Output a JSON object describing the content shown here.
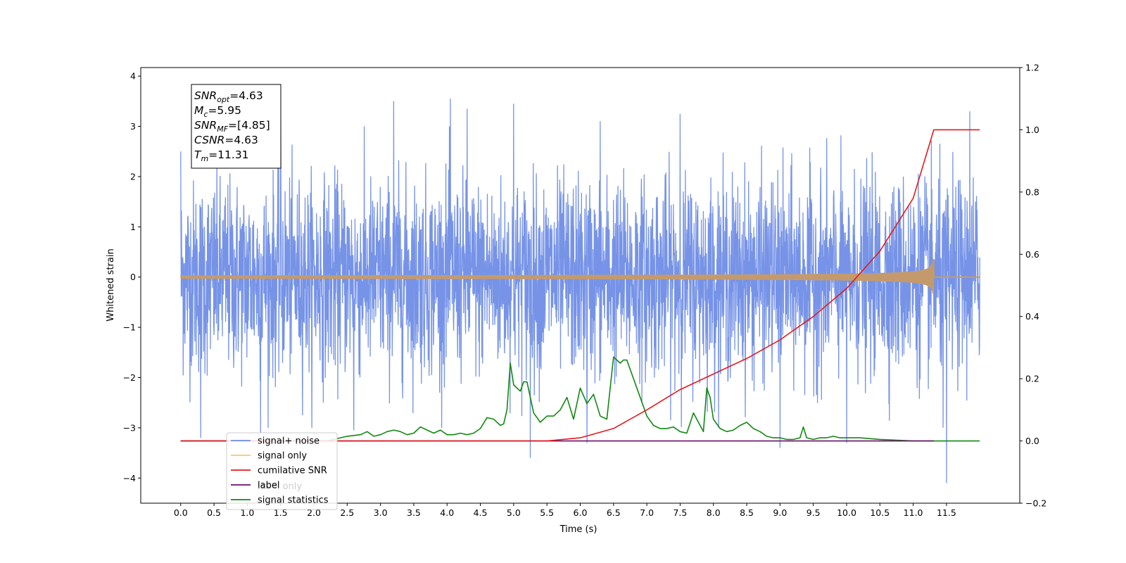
{
  "chart_data": {
    "type": "line",
    "xlabel": "Time (s)",
    "ylabel": "Whitened strain",
    "xlim": [
      -0.6,
      12.6
    ],
    "ylim": [
      -4.5,
      4.17
    ],
    "y2lim": [
      -0.2,
      1.2
    ],
    "x_ticks": [
      "0.0",
      "0.5",
      "1.0",
      "1.5",
      "2.0",
      "2.5",
      "3.0",
      "3.5",
      "4.0",
      "4.5",
      "5.0",
      "5.5",
      "6.0",
      "6.5",
      "7.0",
      "7.5",
      "8.0",
      "8.5",
      "9.0",
      "9.5",
      "10.0",
      "10.5",
      "11.0",
      "11.5"
    ],
    "y_ticks": [
      "4",
      "3",
      "2",
      "1",
      "0",
      "−1",
      "−2",
      "−3",
      "−4"
    ],
    "y2_ticks": [
      "1.2",
      "1.0",
      "0.8",
      "0.6",
      "0.4",
      "0.2",
      "0.0",
      "−0.2"
    ],
    "info_box": {
      "lines": [
        {
          "main": "SNR",
          "sub": "opt",
          "value": "=4.63"
        },
        {
          "main": "M",
          "sub": "c",
          "value": "=5.95"
        },
        {
          "main": "SNR",
          "sub": "MF",
          "value": "=[4.85]"
        },
        {
          "main": "CSNR",
          "sub": "",
          "value": "=4.63"
        },
        {
          "main": "T",
          "sub": "m",
          "value": "=11.31"
        }
      ]
    },
    "legend": {
      "position": "lower-left",
      "entries": [
        {
          "label": "signal+ noise",
          "color": "#6f8de6"
        },
        {
          "label": "signal only",
          "color": "#ffc266"
        },
        {
          "label": "cumilative SNR",
          "color": "#e31a1c"
        },
        {
          "label": "label",
          "color": "#6b0f6b"
        },
        {
          "label": "signal statistics",
          "color": "#118811"
        }
      ],
      "hidden_text": "label only"
    },
    "series": [
      {
        "name": "signal+ noise",
        "axis": "left",
        "color": "#6f8de6",
        "x_range": [
          0.0,
          12.0
        ],
        "noise_std": 0.95,
        "spikes": [
          {
            "x": 0.0,
            "y": 2.5
          },
          {
            "x": 0.3,
            "y": -3.2
          },
          {
            "x": 1.5,
            "y": 3.8
          },
          {
            "x": 1.2,
            "y": -3.1
          },
          {
            "x": 3.2,
            "y": 3.5
          },
          {
            "x": 4.05,
            "y": 3.55
          },
          {
            "x": 4.3,
            "y": 3.35
          },
          {
            "x": 5.0,
            "y": 3.45
          },
          {
            "x": 5.25,
            "y": -3.6
          },
          {
            "x": 6.3,
            "y": 3.1
          },
          {
            "x": 6.1,
            "y": -3.3
          },
          {
            "x": 7.5,
            "y": 3.25
          },
          {
            "x": 9.0,
            "y": -3.4
          },
          {
            "x": 10.0,
            "y": -3.3
          },
          {
            "x": 11.5,
            "y": -4.1
          },
          {
            "x": 11.85,
            "y": 3.3
          },
          {
            "x": 11.45,
            "y": -3.0
          },
          {
            "x": 2.6,
            "y": -3.05
          }
        ]
      },
      {
        "name": "signal only",
        "axis": "left",
        "color": "#c49a6c",
        "x_range": [
          0.0,
          12.0
        ],
        "merger_time": 11.31,
        "peak_amplitude": 0.36
      },
      {
        "name": "cumilative SNR",
        "axis": "right",
        "color": "#e31a1c",
        "x": [
          0.0,
          5.0,
          5.5,
          6.0,
          6.5,
          7.0,
          7.5,
          8.0,
          8.5,
          9.0,
          9.5,
          10.0,
          10.5,
          11.0,
          11.31,
          11.5,
          12.0
        ],
        "y": [
          0.0,
          0.0,
          0.0,
          0.01,
          0.04,
          0.1,
          0.165,
          0.215,
          0.265,
          0.325,
          0.4,
          0.49,
          0.61,
          0.78,
          1.0,
          1.0,
          1.0
        ]
      },
      {
        "name": "label",
        "axis": "right",
        "color": "#6b0f6b",
        "x": [
          0.0,
          11.31
        ],
        "y": [
          0.0,
          0.0
        ]
      },
      {
        "name": "signal statistics",
        "axis": "right",
        "color": "#118811",
        "x": [
          0.0,
          2.2,
          2.5,
          2.7,
          2.8,
          2.9,
          3.0,
          3.1,
          3.2,
          3.3,
          3.4,
          3.5,
          3.6,
          3.7,
          3.8,
          3.9,
          4.0,
          4.1,
          4.2,
          4.3,
          4.4,
          4.5,
          4.6,
          4.7,
          4.8,
          4.85,
          4.9,
          4.95,
          5.0,
          5.1,
          5.15,
          5.2,
          5.3,
          5.4,
          5.5,
          5.6,
          5.7,
          5.8,
          5.9,
          6.0,
          6.1,
          6.2,
          6.3,
          6.4,
          6.5,
          6.6,
          6.65,
          6.7,
          6.8,
          6.9,
          7.0,
          7.1,
          7.2,
          7.3,
          7.4,
          7.5,
          7.6,
          7.7,
          7.8,
          7.85,
          7.9,
          7.95,
          8.0,
          8.1,
          8.2,
          8.3,
          8.4,
          8.5,
          8.6,
          8.7,
          8.8,
          8.9,
          9.0,
          9.1,
          9.2,
          9.3,
          9.35,
          9.4,
          9.5,
          9.6,
          9.7,
          9.8,
          9.9,
          10.0,
          10.2,
          10.5,
          11.0,
          12.0
        ],
        "y": [
          0.0,
          0.0,
          0.015,
          0.02,
          0.03,
          0.015,
          0.02,
          0.03,
          0.035,
          0.03,
          0.02,
          0.025,
          0.045,
          0.035,
          0.025,
          0.035,
          0.02,
          0.02,
          0.025,
          0.02,
          0.025,
          0.04,
          0.075,
          0.07,
          0.05,
          0.055,
          0.1,
          0.25,
          0.18,
          0.16,
          0.19,
          0.19,
          0.09,
          0.06,
          0.08,
          0.08,
          0.1,
          0.14,
          0.07,
          0.17,
          0.12,
          0.15,
          0.08,
          0.07,
          0.27,
          0.25,
          0.26,
          0.26,
          0.2,
          0.14,
          0.08,
          0.05,
          0.04,
          0.04,
          0.045,
          0.03,
          0.025,
          0.09,
          0.05,
          0.03,
          0.17,
          0.14,
          0.07,
          0.04,
          0.03,
          0.035,
          0.05,
          0.06,
          0.04,
          0.03,
          0.015,
          0.01,
          0.01,
          0.005,
          0.005,
          0.01,
          0.045,
          0.01,
          0.005,
          0.01,
          0.01,
          0.015,
          0.01,
          0.01,
          0.01,
          0.005,
          0.0,
          0.0
        ]
      }
    ]
  }
}
